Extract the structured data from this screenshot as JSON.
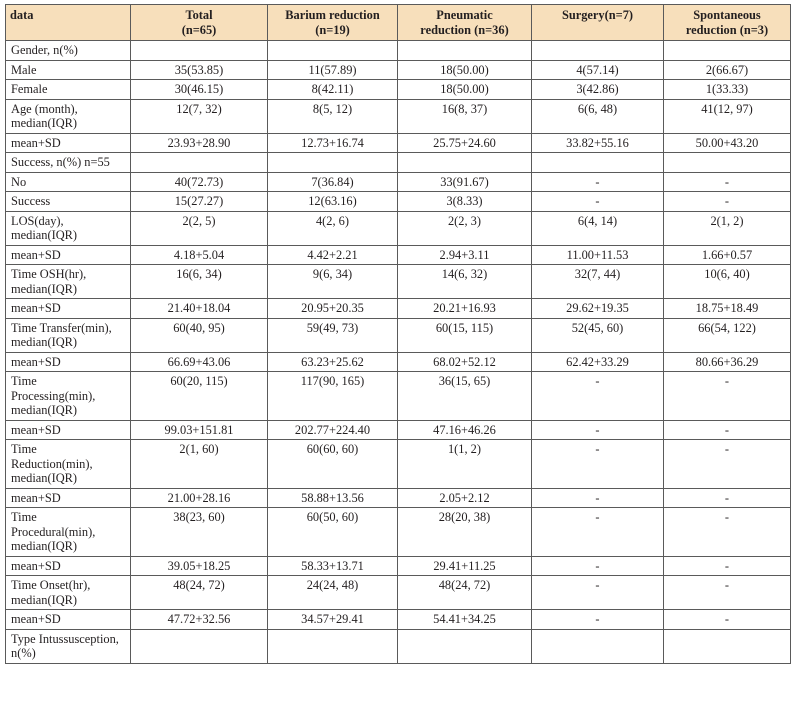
{
  "table": {
    "headers": [
      [
        "data"
      ],
      [
        "Total",
        "(n=65)"
      ],
      [
        "Barium reduction",
        "(n=19)"
      ],
      [
        "Pneumatic",
        "reduction (n=36)"
      ],
      [
        "Surgery(n=7)"
      ],
      [
        "Spontaneous",
        "reduction (n=3)"
      ]
    ],
    "rows": [
      {
        "label": [
          "Gender, n(%)"
        ],
        "cells": [
          "",
          "",
          "",
          "",
          ""
        ]
      },
      {
        "label": [
          "Male"
        ],
        "cells": [
          "35(53.85)",
          "11(57.89)",
          "18(50.00)",
          "4(57.14)",
          "2(66.67)"
        ]
      },
      {
        "label": [
          "Female"
        ],
        "cells": [
          "30(46.15)",
          "8(42.11)",
          "18(50.00)",
          "3(42.86)",
          "1(33.33)"
        ]
      },
      {
        "label": [
          "Age (month),",
          "median(IQR)"
        ],
        "cells": [
          "12(7, 32)",
          "8(5, 12)",
          "16(8, 37)",
          "6(6, 48)",
          "41(12, 97)"
        ]
      },
      {
        "label": [
          "mean+SD"
        ],
        "cells": [
          "23.93+28.90",
          "12.73+16.74",
          "25.75+24.60",
          "33.82+55.16",
          "50.00+43.20"
        ]
      },
      {
        "label": [
          "Success, n(%) n=55"
        ],
        "cells": [
          "",
          "",
          "",
          "",
          ""
        ]
      },
      {
        "label": [
          "No"
        ],
        "cells": [
          "40(72.73)",
          "7(36.84)",
          "33(91.67)",
          "-",
          "-"
        ]
      },
      {
        "label": [
          "Success"
        ],
        "cells": [
          "15(27.27)",
          "12(63.16)",
          "3(8.33)",
          "-",
          "-"
        ]
      },
      {
        "label": [
          "LOS(day),",
          "median(IQR)"
        ],
        "cells": [
          "2(2, 5)",
          "4(2, 6)",
          "2(2, 3)",
          "6(4, 14)",
          "2(1, 2)"
        ]
      },
      {
        "label": [
          "mean+SD"
        ],
        "cells": [
          "4.18+5.04",
          "4.42+2.21",
          "2.94+3.11",
          "11.00+11.53",
          "1.66+0.57"
        ]
      },
      {
        "label": [
          "Time OSH(hr),",
          "median(IQR)"
        ],
        "cells": [
          "16(6, 34)",
          "9(6, 34)",
          "14(6, 32)",
          "32(7, 44)",
          "10(6, 40)"
        ]
      },
      {
        "label": [
          "mean+SD"
        ],
        "cells": [
          "21.40+18.04",
          "20.95+20.35",
          "20.21+16.93",
          "29.62+19.35",
          "18.75+18.49"
        ]
      },
      {
        "label": [
          "Time Transfer(min),",
          "median(IQR)"
        ],
        "cells": [
          "60(40, 95)",
          "59(49, 73)",
          "60(15, 115)",
          "52(45, 60)",
          "66(54, 122)"
        ]
      },
      {
        "label": [
          "mean+SD"
        ],
        "cells": [
          "66.69+43.06",
          "63.23+25.62",
          "68.02+52.12",
          "62.42+33.29",
          "80.66+36.29"
        ]
      },
      {
        "label": [
          "Time",
          "Processing(min),",
          "median(IQR)"
        ],
        "cells": [
          "60(20, 115)",
          "117(90, 165)",
          "36(15, 65)",
          "-",
          "-"
        ]
      },
      {
        "label": [
          "mean+SD"
        ],
        "cells": [
          "99.03+151.81",
          "202.77+224.40",
          "47.16+46.26",
          "-",
          "-"
        ]
      },
      {
        "label": [
          "Time",
          "Reduction(min),",
          "median(IQR)"
        ],
        "cells": [
          "2(1, 60)",
          "60(60, 60)",
          "1(1, 2)",
          "-",
          "-"
        ]
      },
      {
        "label": [
          "mean+SD"
        ],
        "cells": [
          "21.00+28.16",
          "58.88+13.56",
          "2.05+2.12",
          "-",
          "-"
        ]
      },
      {
        "label": [
          "Time",
          "Procedural(min),",
          "median(IQR)"
        ],
        "cells": [
          "38(23, 60)",
          "60(50, 60)",
          "28(20, 38)",
          "-",
          "-"
        ]
      },
      {
        "label": [
          "mean+SD"
        ],
        "cells": [
          "39.05+18.25",
          "58.33+13.71",
          "29.41+11.25",
          "-",
          "-"
        ]
      },
      {
        "label": [
          "Time Onset(hr),",
          "median(IQR)"
        ],
        "cells": [
          "48(24, 72)",
          "24(24, 48)",
          "48(24, 72)",
          "-",
          "-"
        ]
      },
      {
        "label": [
          "mean+SD"
        ],
        "cells": [
          "47.72+32.56",
          "34.57+29.41",
          "54.41+34.25",
          "-",
          "-"
        ]
      },
      {
        "label": [
          "Type Intussusception,",
          "n(%)"
        ],
        "cells": [
          "",
          "",
          "",
          "",
          ""
        ]
      }
    ]
  }
}
